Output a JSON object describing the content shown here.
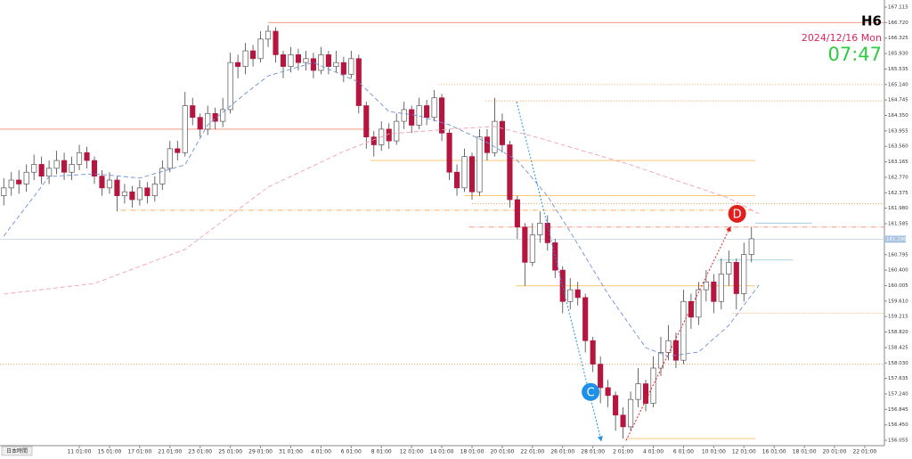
{
  "chart_data": {
    "type": "candlestick",
    "header": {
      "timeframe": "H6",
      "date": "2024/12/16 Mon",
      "time": "07:47"
    },
    "timezone_label": "日本時間",
    "xlim": [
      -0.5,
      116.6
    ],
    "ylim": [
      155.92,
      167.297
    ],
    "yticks": [
      167.115,
      {
        "value": 166.72,
        "label": "166.720"
      },
      166.325,
      {
        "value": 165.93,
        "label": "165.930"
      },
      165.535,
      {
        "value": 165.14,
        "label": "165.140"
      },
      164.745,
      {
        "value": 164.35,
        "label": "164.350"
      },
      163.955,
      {
        "value": 163.56,
        "label": "163.560"
      },
      163.165,
      {
        "value": 162.77,
        "label": "162.770"
      },
      162.375,
      {
        "value": 161.98,
        "label": "161.980"
      },
      161.585,
      160.795,
      {
        "value": 160.4,
        "label": "160.400"
      },
      160.005,
      {
        "value": 159.61,
        "label": "159.610"
      },
      159.215,
      {
        "value": 158.82,
        "label": "158.820"
      },
      158.425,
      {
        "value": 158.03,
        "label": "158.030"
      },
      157.635,
      {
        "value": 157.24,
        "label": "157.240"
      },
      156.845,
      {
        "value": 156.45,
        "label": "156.450"
      },
      156.055
    ],
    "categories": [
      null,
      null,
      null,
      null,
      null,
      null,
      null,
      null,
      null,
      null,
      "11 01:00",
      null,
      null,
      null,
      "15 01:00",
      null,
      null,
      null,
      "17 01:00",
      null,
      null,
      null,
      "21 01:00",
      null,
      null,
      null,
      "23 01:00",
      null,
      null,
      null,
      "25 01:00",
      null,
      null,
      null,
      "29 01:00",
      null,
      null,
      null,
      "31 01:00",
      null,
      null,
      null,
      "4 01:00",
      null,
      null,
      null,
      "6 01:00",
      null,
      null,
      null,
      "8 01:00",
      null,
      null,
      null,
      "12 01:00",
      null,
      null,
      null,
      "14 01:00",
      null,
      null,
      null,
      "18 01:00",
      null,
      null,
      null,
      "20 01:00",
      null,
      null,
      null,
      "22 01:00",
      null,
      null,
      null,
      "26 01:00",
      null,
      null,
      null,
      "28 01:00",
      null,
      null,
      null,
      "2 01:00",
      null,
      null,
      null,
      "4 01:00",
      null,
      null,
      null,
      "6 01:00",
      null,
      null,
      null,
      "10 01:00",
      null,
      null,
      null,
      "12 01:00",
      null,
      null,
      null,
      "16 01:00",
      null,
      null,
      null,
      "18 01:00",
      null,
      null,
      null,
      "20 01:00",
      null,
      null,
      null,
      "22 01:00"
    ],
    "series": [
      {
        "type": "candlestick",
        "up_color": "#ffffff",
        "down_color": "#b5163f",
        "values": [
          [
            162.3,
            162.75,
            162.05,
            162.5
          ],
          [
            162.5,
            162.9,
            162.3,
            162.7
          ],
          [
            162.7,
            162.95,
            162.35,
            162.6
          ],
          [
            162.6,
            163.1,
            162.4,
            162.9
          ],
          [
            162.9,
            163.35,
            162.7,
            163.1
          ],
          [
            163.1,
            163.3,
            162.6,
            162.8
          ],
          [
            162.8,
            163.2,
            162.6,
            163.0
          ],
          [
            163.0,
            163.45,
            162.85,
            163.2
          ],
          [
            163.2,
            163.4,
            162.7,
            162.9
          ],
          [
            162.9,
            163.3,
            162.7,
            163.1
          ],
          [
            163.1,
            163.6,
            162.95,
            163.4
          ],
          [
            163.4,
            163.55,
            163.0,
            163.2
          ],
          [
            163.2,
            163.3,
            162.6,
            162.8
          ],
          [
            162.8,
            162.95,
            162.3,
            162.5
          ],
          [
            162.5,
            162.9,
            162.35,
            162.7
          ],
          [
            162.7,
            162.8,
            161.9,
            162.3
          ],
          [
            162.3,
            162.6,
            162.1,
            162.4
          ],
          [
            162.4,
            162.55,
            162.0,
            162.2
          ],
          [
            162.2,
            162.7,
            162.05,
            162.5
          ],
          [
            162.5,
            162.65,
            162.1,
            162.3
          ],
          [
            162.3,
            162.8,
            162.15,
            162.6
          ],
          [
            162.6,
            163.2,
            162.45,
            163.0
          ],
          [
            163.0,
            163.7,
            162.9,
            163.5
          ],
          [
            163.5,
            163.7,
            163.2,
            163.4
          ],
          [
            163.4,
            164.95,
            163.3,
            164.6
          ],
          [
            164.6,
            164.8,
            164.1,
            164.3
          ],
          [
            164.3,
            164.4,
            163.8,
            164.0
          ],
          [
            164.0,
            164.6,
            163.85,
            164.4
          ],
          [
            164.4,
            164.55,
            164.0,
            164.2
          ],
          [
            164.2,
            164.8,
            164.05,
            164.5
          ],
          [
            164.5,
            165.95,
            164.4,
            165.7
          ],
          [
            165.7,
            165.9,
            165.3,
            165.6
          ],
          [
            165.6,
            166.2,
            165.4,
            166.0
          ],
          [
            166.0,
            166.15,
            165.6,
            165.8
          ],
          [
            165.8,
            166.5,
            165.7,
            166.3
          ],
          [
            166.3,
            166.65,
            166.1,
            166.5
          ],
          [
            166.5,
            166.6,
            165.7,
            165.9
          ],
          [
            165.9,
            166.0,
            165.3,
            165.6
          ],
          [
            165.6,
            166.1,
            165.45,
            165.9
          ],
          [
            165.9,
            166.05,
            165.5,
            165.7
          ],
          [
            165.7,
            166.0,
            165.5,
            165.8
          ],
          [
            165.8,
            165.95,
            165.3,
            165.5
          ],
          [
            165.5,
            166.1,
            165.4,
            165.9
          ],
          [
            165.9,
            166.0,
            165.4,
            165.6
          ],
          [
            165.6,
            166.0,
            165.45,
            165.7
          ],
          [
            165.7,
            165.85,
            165.2,
            165.4
          ],
          [
            165.4,
            166.0,
            165.3,
            165.8
          ],
          [
            165.8,
            165.9,
            164.4,
            164.6
          ],
          [
            164.6,
            164.7,
            163.5,
            163.8
          ],
          [
            163.8,
            163.95,
            163.3,
            163.6
          ],
          [
            163.6,
            164.2,
            163.45,
            164.0
          ],
          [
            164.0,
            164.15,
            163.5,
            163.7
          ],
          [
            163.7,
            164.4,
            163.6,
            164.2
          ],
          [
            164.2,
            164.7,
            164.0,
            164.5
          ],
          [
            164.5,
            164.6,
            163.9,
            164.1
          ],
          [
            164.1,
            164.8,
            164.0,
            164.6
          ],
          [
            164.6,
            164.75,
            164.1,
            164.3
          ],
          [
            164.3,
            165.0,
            164.2,
            164.8
          ],
          [
            164.8,
            164.9,
            163.7,
            163.9
          ],
          [
            163.9,
            164.0,
            162.7,
            162.9
          ],
          [
            162.9,
            163.1,
            162.3,
            162.5
          ],
          [
            162.5,
            163.5,
            162.4,
            163.3
          ],
          [
            163.3,
            163.4,
            162.2,
            162.4
          ],
          [
            162.4,
            164.0,
            162.3,
            163.8
          ],
          [
            163.8,
            164.0,
            163.2,
            163.4
          ],
          [
            163.4,
            164.8,
            163.3,
            164.2
          ],
          [
            164.2,
            164.4,
            163.4,
            163.6
          ],
          [
            163.6,
            163.7,
            162.0,
            162.2
          ],
          [
            162.2,
            162.3,
            161.2,
            161.5
          ],
          [
            161.5,
            161.6,
            160.0,
            160.6
          ],
          [
            160.6,
            161.6,
            160.5,
            161.3
          ],
          [
            161.3,
            161.9,
            161.1,
            161.6
          ],
          [
            161.6,
            161.8,
            160.9,
            161.1
          ],
          [
            161.1,
            161.2,
            160.2,
            160.4
          ],
          [
            160.4,
            160.5,
            159.3,
            159.6
          ],
          [
            159.6,
            160.2,
            159.4,
            159.9
          ],
          [
            159.9,
            160.1,
            159.5,
            159.7
          ],
          [
            159.7,
            159.8,
            158.3,
            158.6
          ],
          [
            158.6,
            158.7,
            157.8,
            158.0
          ],
          [
            158.0,
            158.2,
            157.0,
            157.4
          ],
          [
            157.4,
            157.6,
            156.9,
            157.2
          ],
          [
            157.2,
            157.3,
            156.3,
            156.7
          ],
          [
            156.7,
            156.9,
            156.1,
            156.4
          ],
          [
            156.4,
            157.3,
            156.3,
            157.1
          ],
          [
            157.1,
            157.9,
            156.9,
            157.5
          ],
          [
            157.5,
            157.6,
            156.8,
            157.0
          ],
          [
            157.0,
            158.2,
            156.9,
            157.9
          ],
          [
            157.9,
            158.7,
            157.7,
            158.3
          ],
          [
            158.3,
            159.0,
            158.1,
            158.6
          ],
          [
            158.6,
            158.8,
            157.9,
            158.1
          ],
          [
            158.1,
            159.9,
            158.0,
            159.6
          ],
          [
            159.6,
            159.8,
            158.9,
            159.2
          ],
          [
            159.2,
            160.1,
            159.0,
            159.9
          ],
          [
            159.9,
            160.4,
            159.6,
            160.1
          ],
          [
            160.1,
            160.3,
            159.3,
            159.6
          ],
          [
            159.6,
            160.7,
            159.4,
            160.3
          ],
          [
            160.3,
            160.9,
            160.0,
            160.6
          ],
          [
            160.6,
            160.7,
            159.4,
            159.8
          ],
          [
            159.8,
            161.1,
            159.6,
            160.8
          ],
          [
            160.8,
            161.5,
            160.6,
            161.2
          ],
          null,
          null,
          null,
          null,
          null,
          null,
          null,
          null,
          null,
          null,
          null,
          null,
          null,
          null,
          null
        ]
      },
      {
        "type": "line",
        "color": "#6f8fd8",
        "x": [
          0,
          6,
          12,
          18,
          24,
          27,
          32,
          35,
          41,
          47,
          51,
          55,
          59,
          64,
          68,
          72,
          75,
          80,
          85,
          88,
          92,
          96,
          100
        ],
        "values": [
          161.27,
          162.79,
          162.86,
          162.75,
          163.09,
          164.11,
          164.91,
          165.36,
          165.7,
          165.2,
          164.45,
          164.34,
          164.11,
          163.66,
          163.2,
          162.29,
          161.38,
          159.79,
          158.42,
          158.2,
          158.31,
          158.99,
          160.02
        ]
      },
      {
        "type": "line",
        "color": "#f0a0b4",
        "x": [
          0,
          12,
          24,
          35,
          45,
          51,
          59,
          65,
          71,
          77,
          83,
          90,
          96,
          100
        ],
        "values": [
          159.79,
          160.06,
          160.93,
          162.52,
          163.43,
          163.88,
          164.0,
          164.07,
          163.77,
          163.43,
          163.09,
          162.63,
          162.24,
          161.84
        ]
      }
    ],
    "levels": [
      {
        "value": 166.72,
        "x": [
          35,
          116.6
        ],
        "color": "#f08a70",
        "dash": "none"
      },
      {
        "value": 165.14,
        "x": [
          57.5,
          116.6
        ],
        "color": "#f5a050",
        "dash": "1,2"
      },
      {
        "value": 164.72,
        "x": [
          63.8,
          116.6
        ],
        "color": "#f5a050",
        "dash": "1,2"
      },
      {
        "value": 164.0,
        "x": [
          -0.5,
          48.5
        ],
        "color": "#f08a70",
        "dash": "none"
      },
      {
        "value": 163.2,
        "x": [
          48.5,
          99.5
        ],
        "color": "#f7c060",
        "dash": "none"
      },
      {
        "value": 162.3,
        "x": [
          61,
          99.5
        ],
        "color": "#f7c060",
        "dash": "none"
      },
      {
        "value": 162.1,
        "x": [
          62,
          116.6
        ],
        "color": "#f5a050",
        "dash": "1,2"
      },
      {
        "value": 161.93,
        "x": [
          15.5,
          99.5
        ],
        "color": "#f5b060",
        "dash": "6,2,1,2"
      },
      {
        "value": 161.5,
        "x": [
          61.6,
          116.6
        ],
        "color": "#f08a70",
        "dash": "6,2,1,2"
      },
      {
        "value": 161.6,
        "x": [
          99.5,
          107
        ],
        "color": "#9fcfe0",
        "dash": "none"
      },
      {
        "value": 161.19,
        "x": [
          -0.5,
          116.6
        ],
        "color": "#c8d8ea",
        "dash": "none",
        "label": "161.190"
      },
      {
        "value": 160.66,
        "x": [
          94.5,
          104.5
        ],
        "color": "#9fcfe0",
        "dash": "none"
      },
      {
        "value": 160.0,
        "x": [
          67.8,
          99.5
        ],
        "color": "#f7c060",
        "dash": "none"
      },
      {
        "value": 159.3,
        "x": [
          96.5,
          116.6
        ],
        "color": "#f5a050",
        "dash": "1,2"
      },
      {
        "value": 158.0,
        "x": [
          -0.5,
          116.6
        ],
        "color": "#f5a050",
        "dash": "1,2"
      },
      {
        "value": 156.1,
        "x": [
          82.4,
          99.5
        ],
        "color": "#f7c060",
        "dash": "none"
      }
    ],
    "annotations": [
      {
        "label": "C",
        "color": "#1e90e8",
        "x": 77.7,
        "y": 157.29,
        "arrow_x": [
          67.9,
          79.1
        ],
        "arrow_y": [
          164.7,
          156.05
        ]
      },
      {
        "label": "D",
        "color": "#e0201e",
        "x": 97.1,
        "y": 161.84,
        "arrow_x": [
          82.4,
          96.2
        ],
        "arrow_y": [
          156.05,
          161.5
        ]
      }
    ]
  }
}
